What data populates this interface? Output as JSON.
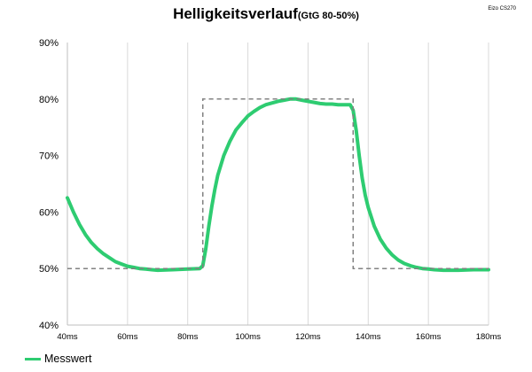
{
  "corner_note": "Eizo CS270",
  "chart_data": {
    "type": "line",
    "title": "Helligkeitsverlauf",
    "subtitle": "(GtG 80-50%)",
    "xlabel": "",
    "ylabel": "",
    "xlim": [
      40,
      180
    ],
    "ylim": [
      40,
      90
    ],
    "x_ticks": [
      40,
      60,
      80,
      100,
      120,
      140,
      160,
      180
    ],
    "x_tick_labels": [
      "40ms",
      "60ms",
      "80ms",
      "100ms",
      "120ms",
      "140ms",
      "160ms",
      "180ms"
    ],
    "y_ticks": [
      40,
      50,
      60,
      70,
      80,
      90
    ],
    "y_tick_labels": [
      "40%",
      "50%",
      "60%",
      "70%",
      "80%",
      "90%"
    ],
    "grid": {
      "vertical": true,
      "horizontal": false
    },
    "legend_position": "bottom-left",
    "series": [
      {
        "name": "Messwert",
        "color": "#2ecc71",
        "x": [
          40,
          42,
          44,
          46,
          48,
          50,
          52,
          54,
          56,
          58,
          60,
          62,
          64,
          66,
          68,
          70,
          75,
          80,
          84,
          85,
          86,
          87,
          88,
          89,
          90,
          92,
          94,
          96,
          98,
          100,
          102,
          104,
          106,
          108,
          110,
          112,
          114,
          116,
          118,
          120,
          122,
          124,
          126,
          128,
          130,
          132,
          134,
          135,
          136,
          137,
          138,
          139,
          140,
          142,
          144,
          146,
          148,
          150,
          152,
          154,
          156,
          158,
          160,
          162,
          165,
          170,
          175,
          180
        ],
        "values": [
          62.5,
          60.0,
          57.8,
          56.0,
          54.6,
          53.5,
          52.6,
          51.9,
          51.2,
          50.8,
          50.4,
          50.2,
          50.0,
          49.9,
          49.8,
          49.7,
          49.8,
          49.9,
          50.0,
          50.5,
          53.5,
          57.5,
          61.0,
          64.0,
          66.5,
          70.0,
          72.5,
          74.5,
          75.8,
          77.0,
          77.8,
          78.5,
          79.0,
          79.3,
          79.6,
          79.8,
          80.0,
          80.0,
          79.8,
          79.6,
          79.4,
          79.2,
          79.1,
          79.1,
          79.0,
          79.0,
          79.0,
          78.0,
          74.5,
          70.0,
          66.0,
          63.0,
          60.8,
          57.5,
          55.2,
          53.6,
          52.4,
          51.5,
          50.9,
          50.5,
          50.2,
          50.0,
          49.9,
          49.8,
          49.7,
          49.7,
          49.8,
          49.8
        ]
      },
      {
        "name": "",
        "color": "#808080",
        "dashed": true,
        "x": [
          40,
          85,
          85,
          135,
          135,
          180
        ],
        "values": [
          50,
          50,
          80,
          80,
          50,
          50
        ]
      }
    ]
  }
}
